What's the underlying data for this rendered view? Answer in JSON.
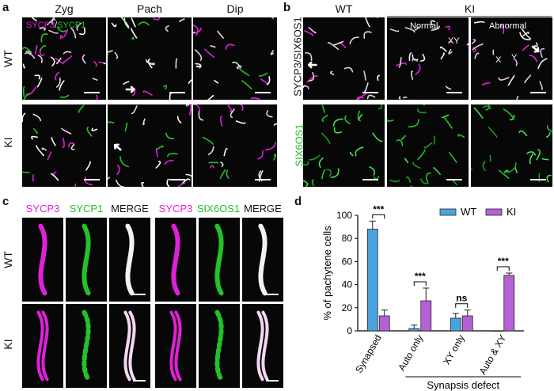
{
  "panels": {
    "a": {
      "label": "a",
      "columns": [
        "Zyg",
        "Pach",
        "Dip"
      ],
      "rows": [
        "WT",
        "KI"
      ],
      "legend_parts": [
        "SYCP3",
        "/",
        "SYCP1"
      ],
      "colors": {
        "magenta": "#e020d8",
        "green": "#22c22a"
      }
    },
    "b": {
      "label": "b",
      "col_wt": "WT",
      "col_ki": "KI",
      "sub_normal": "Normal",
      "sub_abnormal": "Abnormal",
      "xy_label": "XY",
      "x_label": "X",
      "y_label": "Y",
      "row1_label": "SYCP3/SIX6OS1",
      "row2_label": "SIX6OS1"
    },
    "c": {
      "label": "c",
      "group1": [
        "SYCP3",
        "SYCP1",
        "MERGE"
      ],
      "group2": [
        "SYCP3",
        "SIX6OS1",
        "MERGE"
      ],
      "rows": [
        "WT",
        "KI"
      ]
    },
    "d": {
      "label": "d",
      "bracket_label": "Synapsis defect"
    }
  },
  "chart_data": {
    "type": "bar",
    "title": "",
    "categories": [
      "Synapsed",
      "Auto only",
      "XY only",
      "Auto & XY"
    ],
    "series": [
      {
        "name": "WT",
        "color": "#4aa3df",
        "values": [
          88,
          2,
          11,
          0
        ],
        "errors": [
          7,
          3,
          4,
          0
        ]
      },
      {
        "name": "KI",
        "color": "#b561d6",
        "values": [
          13,
          26,
          13,
          48
        ],
        "errors": [
          5,
          11,
          5,
          2
        ]
      }
    ],
    "ylabel": "% of pachytene cells",
    "xlabel": "",
    "ylim": [
      0,
      100
    ],
    "yticks": [
      0,
      20,
      40,
      60,
      80,
      100
    ],
    "significance": [
      "***",
      "***",
      "ns",
      "***"
    ],
    "legend_position": "top-right"
  }
}
